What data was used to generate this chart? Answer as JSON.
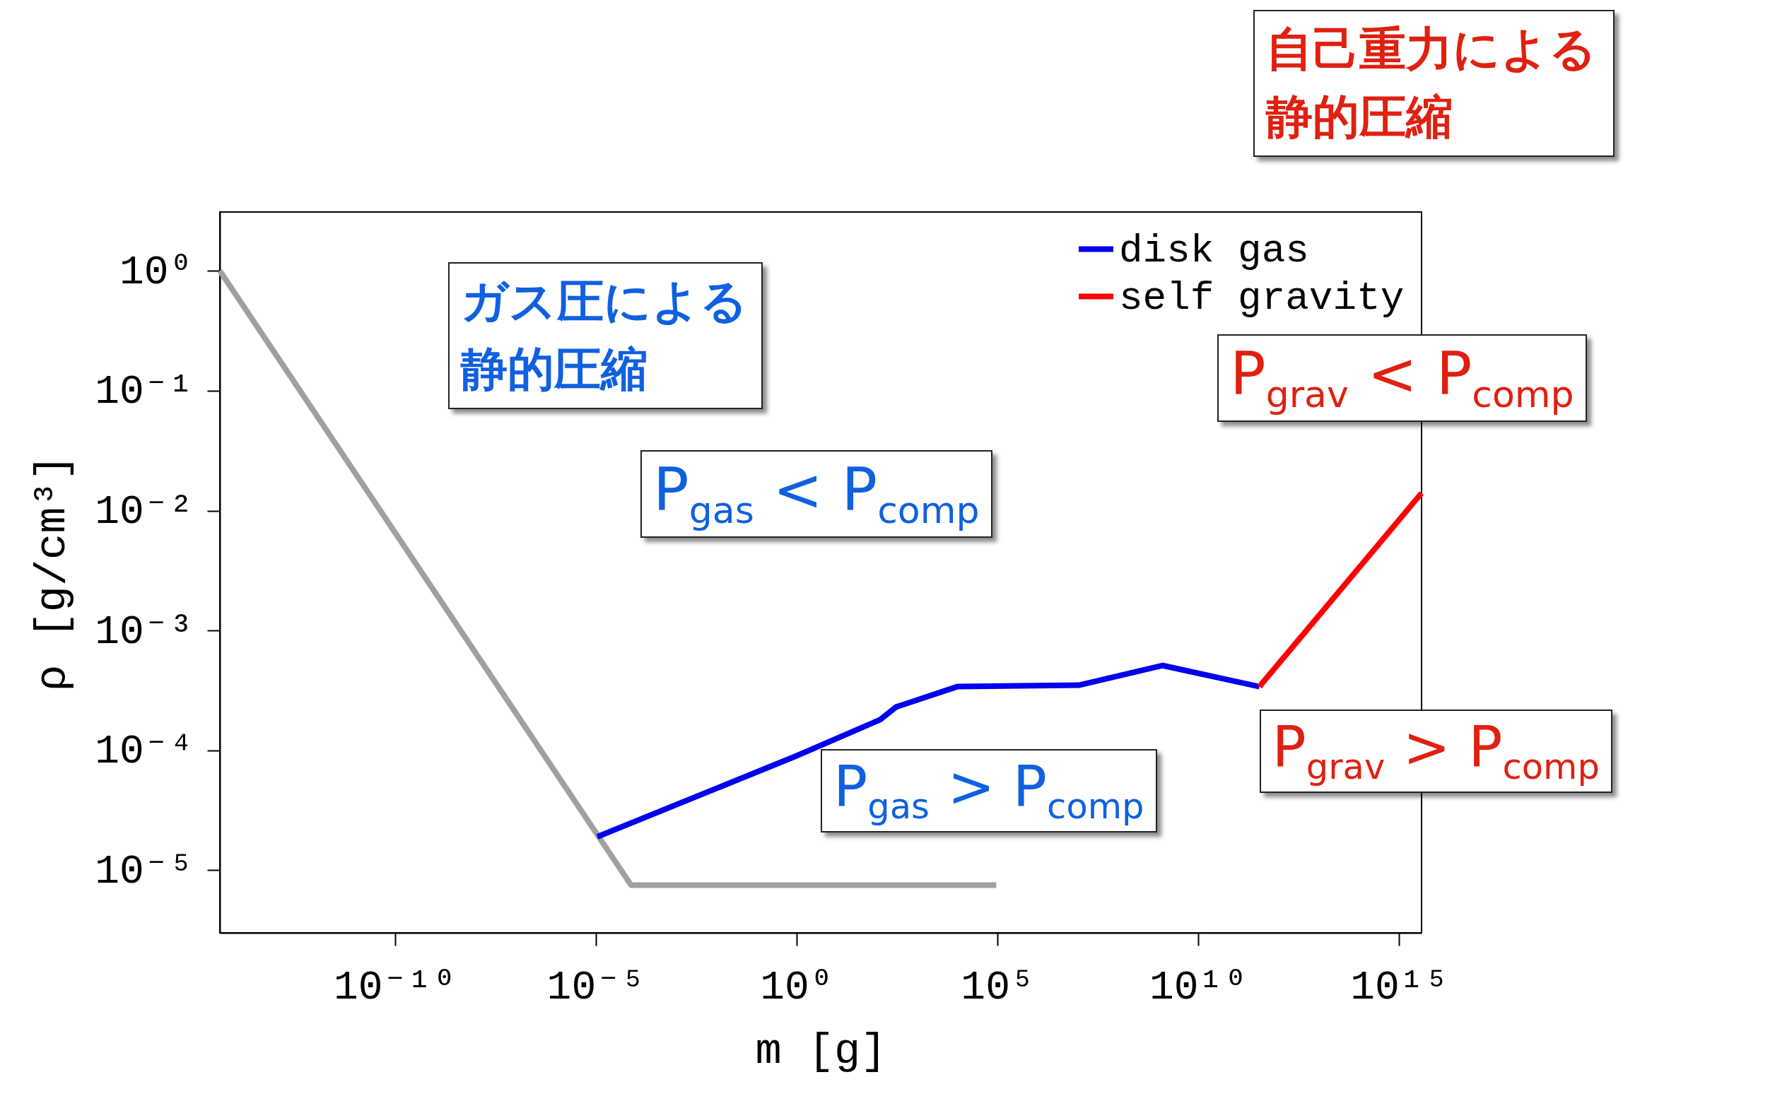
{
  "chart_data": {
    "type": "line",
    "xlabel": "m [g]",
    "ylabel": "ρ [g/cm³]",
    "log": "xy",
    "legend": "top right",
    "line_style": "solid",
    "marker": "none",
    "xlim": [
      4.4e-15,
      3600000000000000.0
    ],
    "ylim": [
      3e-06,
      3.1
    ],
    "xticks": [
      {
        "value": 1e-10,
        "label": "10⁻¹⁰"
      },
      {
        "value": 1e-05,
        "label": "10⁻⁵"
      },
      {
        "value": 1,
        "label": "10⁰"
      },
      {
        "value": 100000.0,
        "label": "10⁵"
      },
      {
        "value": 10000000000.0,
        "label": "10¹⁰"
      },
      {
        "value": 1000000000000000.0,
        "label": "10¹⁵"
      }
    ],
    "yticks": [
      {
        "value": 1e-05,
        "label": "10⁻⁵"
      },
      {
        "value": 0.0001,
        "label": "10⁻⁴"
      },
      {
        "value": 0.001,
        "label": "10⁻³"
      },
      {
        "value": 0.01,
        "label": "10⁻²"
      },
      {
        "value": 0.1,
        "label": "10⁻¹"
      },
      {
        "value": 1,
        "label": "10⁰"
      }
    ],
    "series": [
      {
        "color": "#a0a0a0",
        "x": [
          4.4e-15,
          7.6e-05,
          93000.0
        ],
        "values": [
          1,
          7.5e-06,
          7.5e-06
        ]
      },
      {
        "name": "disk gas",
        "color": "#0000ee",
        "x": [
          1.1e-05,
          1,
          120,
          300,
          10000.0,
          11000000.0,
          1300000000.0,
          330000000000.0
        ],
        "values": [
          1.9e-05,
          9e-05,
          0.00018,
          0.00023,
          0.00034,
          0.00035,
          0.00051,
          0.00034
        ]
      },
      {
        "name": "self gravity",
        "color": "#ff0000",
        "x": [
          330000000000.0,
          3600000000000000.0
        ],
        "values": [
          0.00034,
          0.014
        ]
      }
    ],
    "annotations": [
      "ガス圧による静的圧縮",
      "P$_{gas}$  < P$_{comp}$",
      "P$_{gas}$  > P$_{comp}$",
      "自己重力による静的圧縮",
      "P$_{grav}$  < P$_{comp}$",
      "P$_{grav}$  > P$_{comp}$"
    ]
  }
}
